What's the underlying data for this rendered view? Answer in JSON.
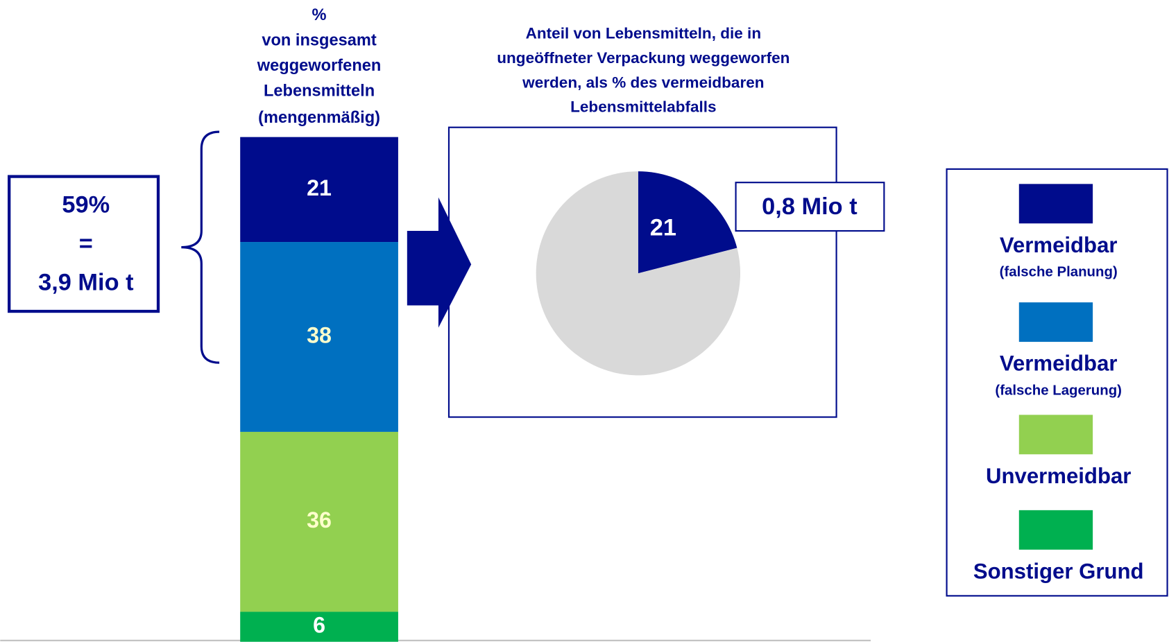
{
  "chart_data": [
    {
      "type": "stacked-bar",
      "title_lines": [
        "%",
        "von insgesamt",
        "weggeworfenen",
        "Lebensmitteln"
      ],
      "subtitle": "(mengenmäßig)",
      "series": [
        {
          "name": "Vermeidbar",
          "note": "(falsche Planung)",
          "color": "#000c8c",
          "label_color": "#ffffff",
          "values": [
            21
          ]
        },
        {
          "name": "Vermeidbar",
          "note": "(falsche Lagerung)",
          "color": "#0070c0",
          "label_color": "#ffffcc",
          "values": [
            38
          ]
        },
        {
          "name": "Unvermeidbar",
          "color": "#92d050",
          "label_color": "#ffffcc",
          "values": [
            36
          ]
        },
        {
          "name": "Sonstiger Grund",
          "color": "#00b050",
          "label_color": "#ffffff",
          "values": [
            6
          ]
        }
      ],
      "annotation_lines": [
        "59%",
        "=",
        "3,9 Mio t"
      ]
    },
    {
      "type": "pie",
      "title_lines": [
        "Anteil von Lebensmitteln, die in",
        "ungeöffneter Verpackung weggeworfen",
        "werden, als % des vermeidbaren",
        "Lebensmittelabfalls"
      ],
      "values": [
        21,
        79
      ],
      "colors": [
        "#000c8c",
        "#d9d9d9"
      ],
      "annotation": "0,8 Mio t"
    }
  ]
}
